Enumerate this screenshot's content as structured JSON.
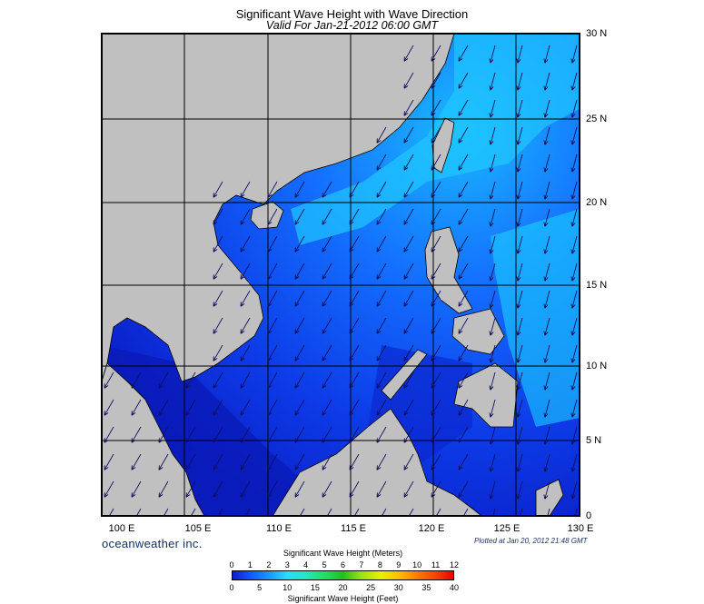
{
  "title": "Significant Wave Height with Wave Direction",
  "subtitle": "Valid For Jan-21-2012 06:00 GMT",
  "lon_labels": [
    "100 E",
    "105 E",
    "110 E",
    "115 E",
    "120 E",
    "125 E",
    "130 E"
  ],
  "lat_labels": [
    "30 N",
    "25 N",
    "20 N",
    "15 N",
    "10 N",
    "5 N",
    "0"
  ],
  "brand": "oceanweather inc.",
  "plotted": "Plotted at Jan 20, 2012 21:48 GMT",
  "colorbar": {
    "title_meters": "Significant Wave Height (Meters)",
    "title_feet": "Significant Wave Height (Feet)",
    "meters_ticks": [
      "0",
      "1",
      "2",
      "3",
      "4",
      "5",
      "6",
      "7",
      "8",
      "9",
      "10",
      "11",
      "12"
    ],
    "feet_ticks": [
      "0",
      "5",
      "10",
      "15",
      "20",
      "25",
      "30",
      "35",
      "40"
    ]
  },
  "colors": {
    "land": "#c0c0c0",
    "sea_low": "#0b1ecc",
    "sea_mid": "#1058ff",
    "sea_high": "#1fc8ff",
    "arrow": "#10105a"
  }
}
